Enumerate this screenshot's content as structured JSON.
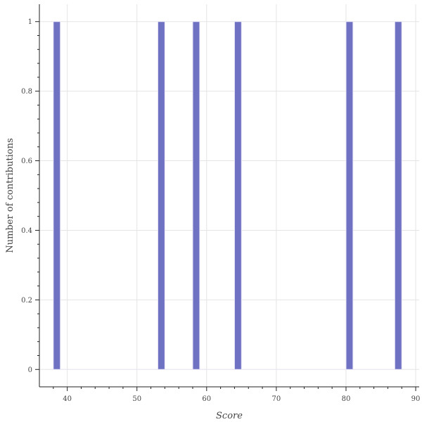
{
  "chart_data": {
    "type": "bar",
    "title": "",
    "xlabel": "Score",
    "ylabel": "Number of contributions",
    "xlim": [
      36,
      90.5
    ],
    "ylim": [
      -0.05,
      1.05
    ],
    "x_ticks": [
      40,
      50,
      60,
      70,
      80,
      90
    ],
    "y_ticks": [
      0,
      0.2,
      0.4,
      0.6,
      0.8,
      1
    ],
    "y_tick_labels": [
      "0",
      "0.2",
      "0.4",
      "0.6",
      "0.8",
      "1"
    ],
    "bin_width": 1,
    "bars": [
      {
        "x": 38,
        "value": 1
      },
      {
        "x": 53,
        "value": 1
      },
      {
        "x": 58,
        "value": 1
      },
      {
        "x": 64,
        "value": 1
      },
      {
        "x": 80,
        "value": 1
      },
      {
        "x": 87,
        "value": 1
      }
    ],
    "grid": true,
    "bar_color": "#6f72c2"
  }
}
